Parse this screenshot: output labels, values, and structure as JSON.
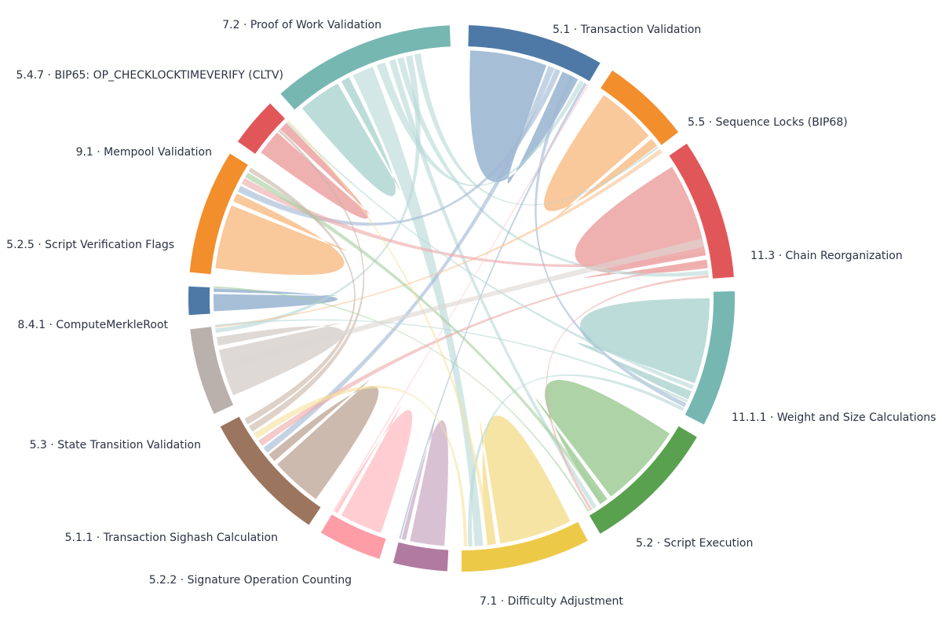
{
  "diagram": {
    "type": "chord",
    "segments": [
      {
        "id": "s51",
        "label": "5.1 · Transaction Validation",
        "color": "#4e79a7",
        "ribbon": "#a0b8d4"
      },
      {
        "id": "s55",
        "label": "5.5 · Sequence Locks (BIP68)",
        "color": "#f28e2b",
        "ribbon": "#f8c393"
      },
      {
        "id": "s113",
        "label": "11.3 · Chain Reorganization",
        "color": "#e15759",
        "ribbon": "#eea9a9"
      },
      {
        "id": "s1111",
        "label": "11.1.1 · Weight and Size Calculations",
        "color": "#76b7b2",
        "ribbon": "#b6d9d6"
      },
      {
        "id": "s52",
        "label": "5.2 · Script Execution",
        "color": "#59a14f",
        "ribbon": "#a7cf9f"
      },
      {
        "id": "s71",
        "label": "7.1 · Difficulty Adjustment",
        "color": "#edc948",
        "ribbon": "#f5e29d"
      },
      {
        "id": "s522",
        "label": "5.2.2 · Signature Operation Counting",
        "color": "#b07aa1",
        "ribbon": "#d6bcd0"
      },
      {
        "id": "s511",
        "label": "5.1.1 · Transaction Sighash Calculation",
        "color": "#ff9da7",
        "ribbon": "#ffc9ce"
      },
      {
        "id": "s53",
        "label": "5.3 · State Transition Validation",
        "color": "#9c755f",
        "ribbon": "#c9b4a7"
      },
      {
        "id": "s841",
        "label": "8.4.1 · ComputeMerkleRoot",
        "color": "#bab0ac",
        "ribbon": "#dcd6d3"
      },
      {
        "id": "s525",
        "label": "5.2.5 · Script Verification Flags",
        "color": "#4e79a7",
        "ribbon": "#a0b8d4"
      },
      {
        "id": "s91",
        "label": "9.1 · Mempool Validation",
        "color": "#f28e2b",
        "ribbon": "#f8c393"
      },
      {
        "id": "s547",
        "label": "5.4.7 · BIP65: OP_CHECKLOCKTIMEVERIFY (CLTV)",
        "color": "#e15759",
        "ribbon": "#eea9a9"
      },
      {
        "id": "s72",
        "label": "7.2 · Proof of Work Validation",
        "color": "#76b7b2",
        "ribbon": "#b6d9d6"
      }
    ]
  }
}
